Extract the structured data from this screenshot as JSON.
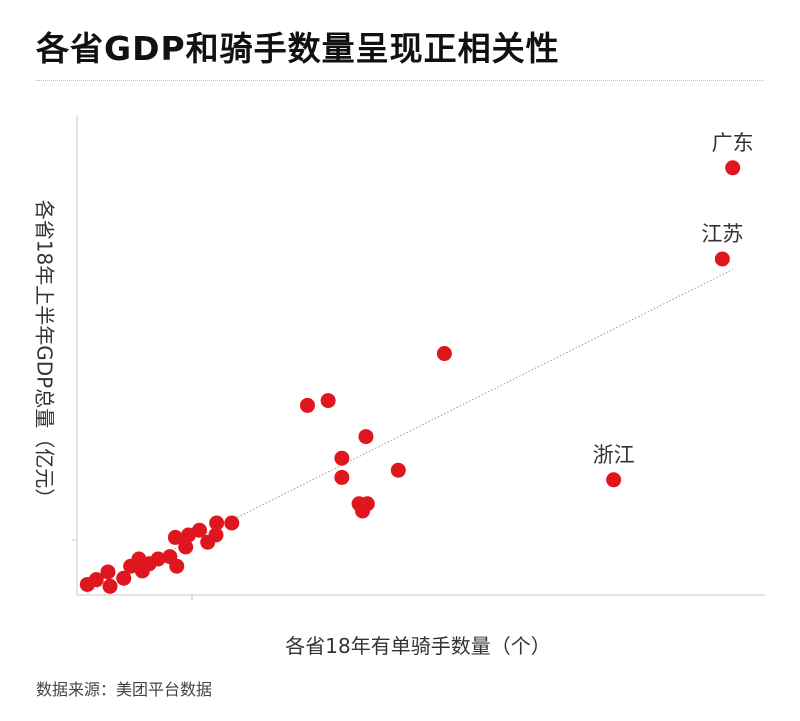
{
  "title": "各省GDP和骑手数量呈现正相关性",
  "source": "数据来源：美团平台数据",
  "chart_data": {
    "type": "scatter",
    "title": "各省GDP和骑手数量呈现正相关性",
    "xlabel": "各省18年有单骑手数量（个）",
    "ylabel": "各省18年上半年GDP总量（亿元）",
    "xlim": [
      0,
      100
    ],
    "ylim": [
      0,
      100
    ],
    "grid": false,
    "trendline": true,
    "point_color": "#e0161e",
    "trendline_color": "#9a9a9a",
    "axis_color": "#c8c8c8",
    "points": [
      {
        "x": 1.5,
        "y": 2.2,
        "label": ""
      },
      {
        "x": 2.8,
        "y": 3.2,
        "label": ""
      },
      {
        "x": 4.5,
        "y": 4.8,
        "label": ""
      },
      {
        "x": 4.8,
        "y": 1.8,
        "label": ""
      },
      {
        "x": 6.8,
        "y": 3.5,
        "label": ""
      },
      {
        "x": 7.8,
        "y": 6.0,
        "label": ""
      },
      {
        "x": 9.0,
        "y": 7.5,
        "label": ""
      },
      {
        "x": 9.5,
        "y": 5.0,
        "label": ""
      },
      {
        "x": 10.5,
        "y": 6.5,
        "label": ""
      },
      {
        "x": 11.8,
        "y": 7.5,
        "label": ""
      },
      {
        "x": 13.5,
        "y": 8.0,
        "label": ""
      },
      {
        "x": 14.3,
        "y": 12.0,
        "label": ""
      },
      {
        "x": 14.5,
        "y": 6.0,
        "label": ""
      },
      {
        "x": 15.8,
        "y": 10.0,
        "label": ""
      },
      {
        "x": 16.2,
        "y": 12.5,
        "label": ""
      },
      {
        "x": 17.8,
        "y": 13.5,
        "label": ""
      },
      {
        "x": 19.0,
        "y": 11.0,
        "label": ""
      },
      {
        "x": 20.2,
        "y": 12.5,
        "label": ""
      },
      {
        "x": 20.3,
        "y": 15.0,
        "label": ""
      },
      {
        "x": 22.5,
        "y": 15.0,
        "label": ""
      },
      {
        "x": 33.5,
        "y": 39.5,
        "label": ""
      },
      {
        "x": 36.5,
        "y": 40.5,
        "label": ""
      },
      {
        "x": 38.5,
        "y": 28.5,
        "label": ""
      },
      {
        "x": 38.5,
        "y": 24.5,
        "label": ""
      },
      {
        "x": 41.0,
        "y": 19.0,
        "label": ""
      },
      {
        "x": 41.5,
        "y": 17.5,
        "label": ""
      },
      {
        "x": 42.2,
        "y": 19.0,
        "label": ""
      },
      {
        "x": 42.0,
        "y": 33.0,
        "label": ""
      },
      {
        "x": 46.7,
        "y": 26.0,
        "label": ""
      },
      {
        "x": 53.4,
        "y": 50.3,
        "label": ""
      },
      {
        "x": 78.0,
        "y": 24.0,
        "label": "浙江"
      },
      {
        "x": 93.8,
        "y": 70.0,
        "label": "江苏"
      },
      {
        "x": 95.3,
        "y": 89.0,
        "label": "广东"
      }
    ]
  }
}
